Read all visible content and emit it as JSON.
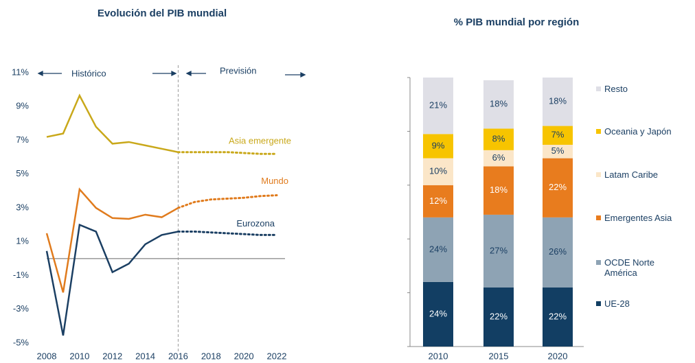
{
  "chart_data": [
    {
      "type": "line",
      "title": "Evolución del PIB mundial",
      "annotations": [
        "Histórico",
        "Previsión"
      ],
      "x": [
        2008,
        2009,
        2010,
        2011,
        2012,
        2013,
        2014,
        2015,
        2016,
        2017,
        2018,
        2019,
        2020,
        2021,
        2022
      ],
      "forecast_start": 2016,
      "series": [
        {
          "name": "Asia emergente",
          "color": "#c9a81a",
          "values": [
            7.2,
            7.4,
            9.65,
            7.8,
            6.8,
            6.9,
            6.7,
            6.5,
            6.3,
            6.3,
            6.3,
            6.3,
            6.25,
            6.2,
            6.2
          ]
        },
        {
          "name": "Mundo",
          "color": "#e07b1d",
          "values": [
            1.5,
            -2.0,
            4.1,
            3.0,
            2.4,
            2.35,
            2.6,
            2.45,
            3.0,
            3.35,
            3.5,
            3.55,
            3.6,
            3.7,
            3.75
          ]
        },
        {
          "name": "Eurozona",
          "color": "#1b3f63",
          "values": [
            0.45,
            -4.55,
            2.0,
            1.6,
            -0.8,
            -0.3,
            0.85,
            1.4,
            1.6,
            1.6,
            1.55,
            1.5,
            1.45,
            1.4,
            1.4
          ]
        }
      ],
      "xlim": [
        2008,
        2022
      ],
      "xticks": [
        2008,
        2010,
        2012,
        2014,
        2016,
        2018,
        2020,
        2022
      ],
      "ylim": [
        -5,
        11
      ],
      "yticks": [
        {
          "value": 11,
          "label": "11%"
        },
        {
          "value": 9,
          "label": "9%"
        },
        {
          "value": 7,
          "label": "7%"
        },
        {
          "value": 5,
          "label": "5%"
        },
        {
          "value": 3,
          "label": "3%"
        },
        {
          "value": 1,
          "label": "1%"
        },
        {
          "value": -1,
          "label": "-1%"
        },
        {
          "value": -3,
          "label": "-3%"
        },
        {
          "value": -5,
          "label": "-5%"
        }
      ]
    },
    {
      "type": "stacked_bar",
      "title": "% PIB mundial por región",
      "categories": [
        "2010",
        "2015",
        "2020"
      ],
      "ylim": [
        0,
        100
      ],
      "yticks": [
        0,
        20,
        40,
        60,
        80,
        100
      ],
      "tick_labels": false,
      "series": [
        {
          "name": "UE-28",
          "color": "#123e63",
          "label_color": "#ffffff",
          "values": [
            24,
            22,
            22
          ],
          "value_labels": [
            "24%",
            "22%",
            "22%"
          ]
        },
        {
          "name": "OCDE Norte América",
          "color": "#8ea3b4",
          "label_color": "#1b3f63",
          "values": [
            24,
            27,
            26
          ],
          "value_labels": [
            "24%",
            "27%",
            "26%"
          ]
        },
        {
          "name": "Emergentes Asia",
          "color": "#e87c1e",
          "label_color": "#ffffff",
          "values": [
            12,
            18,
            22
          ],
          "value_labels": [
            "12%",
            "18%",
            "22%"
          ]
        },
        {
          "name": "Latam Caribe",
          "color": "#fbe6c8",
          "label_color": "#1b3f63",
          "values": [
            10,
            6,
            5
          ],
          "value_labels": [
            "10%",
            "6%",
            "5%"
          ]
        },
        {
          "name": "Oceania y Japón",
          "color": "#f7c400",
          "label_color": "#1b3f63",
          "values": [
            9,
            8,
            7
          ],
          "value_labels": [
            "9%",
            "8%",
            "7%"
          ]
        },
        {
          "name": "Resto",
          "color": "#dfdfe6",
          "label_color": "#1b3f63",
          "values": [
            21,
            18,
            18
          ],
          "value_labels": [
            "21%",
            "18%",
            "18%"
          ]
        }
      ]
    }
  ]
}
